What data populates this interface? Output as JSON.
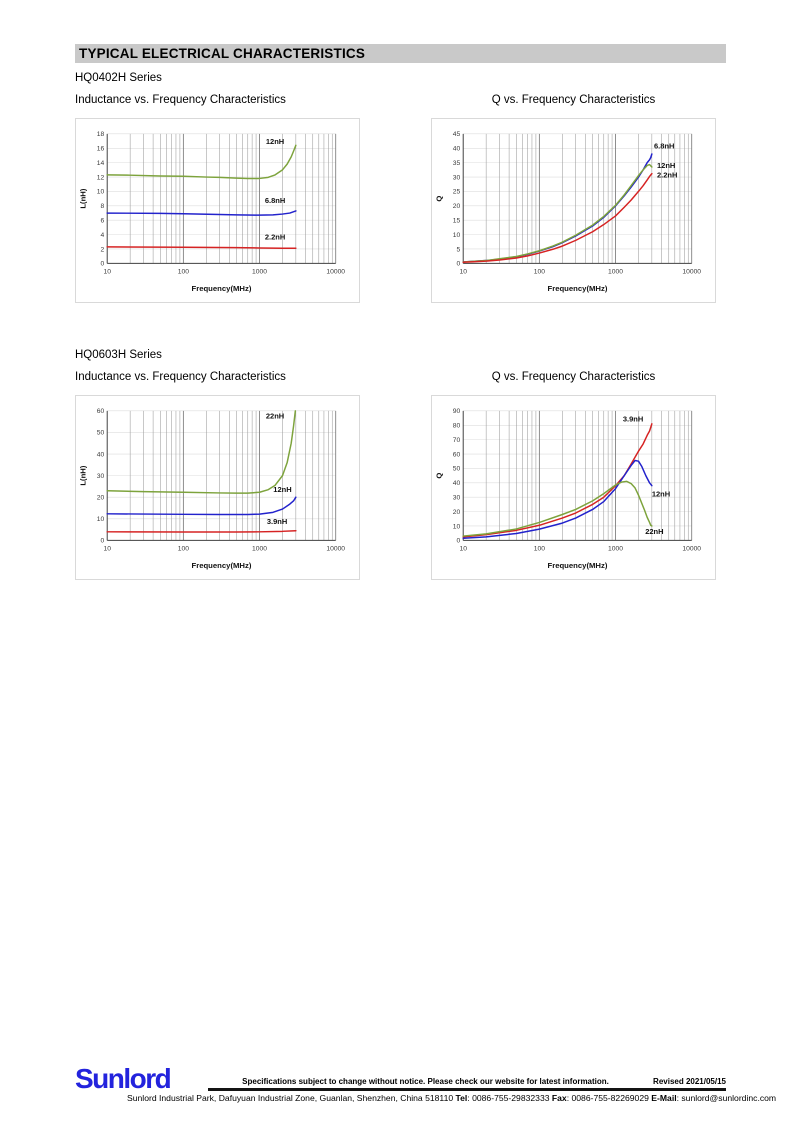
{
  "page": {
    "header_title": "TYPICAL ELECTRICAL CHARACTERISTICS",
    "sections": [
      {
        "series_name": "HQ0402H Series",
        "left_chart_title": "Inductance vs. Frequency Characteristics",
        "right_chart_title": "Q vs. Frequency Characteristics"
      },
      {
        "series_name": "HQ0603H Series",
        "left_chart_title": "Inductance vs. Frequency Characteristics",
        "right_chart_title": "Q vs. Frequency Characteristics"
      }
    ],
    "footer": {
      "logo_text": "Sunlord",
      "spec_notice": "Specifications subject to change without notice. Please check our website for latest information.",
      "revised": "Revised 2021/05/15",
      "address_prefix": "Sunlord Industrial Park, Dafuyuan Industrial Zone, Guanlan, Shenzhen, China 518110 ",
      "tel_label": "Tel",
      "tel_value": ": 0086-755-29832333 ",
      "fax_label": "Fax",
      "fax_value": ": 0086-755-82269029 ",
      "email_label": "E-Mail",
      "email_value": ": sunlord@sunlordinc.com"
    }
  },
  "colors": {
    "green": "#7da33c",
    "blue": "#2222cc",
    "red": "#d62323",
    "logo_blue": "#2323dd",
    "header_bg": "#c9c9c9",
    "grid_minor": "#9a9a9a",
    "grid_major": "#7a7a7a",
    "grid_h": "#dedede",
    "axis": "#404040"
  },
  "chart_data": [
    {
      "type": "line",
      "section": "HQ0402H Series",
      "title": "Inductance vs. Frequency Characteristics",
      "xlabel": "Frequency(MHz)",
      "ylabel": "L(nH)",
      "xscale": "log",
      "xlim": [
        10,
        10000
      ],
      "xticks": [
        10,
        100,
        1000,
        10000
      ],
      "ylim": [
        0,
        18
      ],
      "ystep": 2,
      "grid": true,
      "series": [
        {
          "name": "12nH",
          "color": "green",
          "points": [
            [
              10,
              12.3
            ],
            [
              20,
              12.25
            ],
            [
              50,
              12.15
            ],
            [
              100,
              12.1
            ],
            [
              200,
              12.0
            ],
            [
              300,
              11.95
            ],
            [
              500,
              11.85
            ],
            [
              700,
              11.8
            ],
            [
              1000,
              11.8
            ],
            [
              1300,
              11.95
            ],
            [
              1600,
              12.3
            ],
            [
              2000,
              13.0
            ],
            [
              2300,
              13.8
            ],
            [
              2600,
              14.8
            ],
            [
              2800,
              15.6
            ],
            [
              3000,
              16.4
            ]
          ]
        },
        {
          "name": "6.8nH",
          "color": "blue",
          "points": [
            [
              10,
              7.0
            ],
            [
              50,
              6.95
            ],
            [
              100,
              6.9
            ],
            [
              300,
              6.8
            ],
            [
              500,
              6.75
            ],
            [
              1000,
              6.7
            ],
            [
              1500,
              6.75
            ],
            [
              2000,
              6.85
            ],
            [
              2500,
              7.0
            ],
            [
              3000,
              7.3
            ]
          ]
        },
        {
          "name": "2.2nH",
          "color": "red",
          "points": [
            [
              10,
              2.3
            ],
            [
              100,
              2.25
            ],
            [
              500,
              2.2
            ],
            [
              1000,
              2.15
            ],
            [
              2000,
              2.1
            ],
            [
              3000,
              2.1
            ]
          ]
        }
      ],
      "labels": [
        {
          "text": "12nH",
          "f": 1600,
          "v": 16.6,
          "anchor": "middle"
        },
        {
          "text": "6.8nH",
          "f": 1600,
          "v": 8.4,
          "anchor": "middle"
        },
        {
          "text": "2.2nH",
          "f": 1600,
          "v": 3.3,
          "anchor": "middle"
        }
      ]
    },
    {
      "type": "line",
      "section": "HQ0402H Series",
      "title": "Q vs. Frequency Characteristics",
      "xlabel": "Frequency(MHz)",
      "ylabel": "Q",
      "xscale": "log",
      "xlim": [
        10,
        10000
      ],
      "xticks": [
        10,
        100,
        1000,
        10000
      ],
      "ylim": [
        0,
        45
      ],
      "ystep": 5,
      "grid": true,
      "series": [
        {
          "name": "6.8nH",
          "color": "blue",
          "points": [
            [
              10,
              0.5
            ],
            [
              20,
              1.0
            ],
            [
              30,
              1.5
            ],
            [
              50,
              2.3
            ],
            [
              70,
              3.2
            ],
            [
              100,
              4.3
            ],
            [
              150,
              5.8
            ],
            [
              200,
              7.2
            ],
            [
              300,
              9.5
            ],
            [
              500,
              13.0
            ],
            [
              700,
              16.0
            ],
            [
              1000,
              20.0
            ],
            [
              1300,
              23.5
            ],
            [
              1600,
              26.5
            ],
            [
              2000,
              30.0
            ],
            [
              2300,
              32.5
            ],
            [
              2600,
              35.0
            ],
            [
              2800,
              36.0
            ],
            [
              2900,
              36.8
            ],
            [
              3000,
              38.0
            ]
          ]
        },
        {
          "name": "12nH",
          "color": "green",
          "points": [
            [
              10,
              0.5
            ],
            [
              20,
              1.0
            ],
            [
              30,
              1.6
            ],
            [
              50,
              2.4
            ],
            [
              70,
              3.3
            ],
            [
              100,
              4.4
            ],
            [
              150,
              6.0
            ],
            [
              200,
              7.4
            ],
            [
              300,
              9.8
            ],
            [
              500,
              13.3
            ],
            [
              700,
              16.3
            ],
            [
              1000,
              20.2
            ],
            [
              1300,
              23.8
            ],
            [
              1600,
              27.0
            ],
            [
              2000,
              30.5
            ],
            [
              2300,
              32.5
            ],
            [
              2600,
              34.0
            ],
            [
              2800,
              34.3
            ],
            [
              3000,
              33.5
            ]
          ]
        },
        {
          "name": "2.2nH",
          "color": "red",
          "points": [
            [
              10,
              0.4
            ],
            [
              20,
              0.8
            ],
            [
              30,
              1.2
            ],
            [
              50,
              1.9
            ],
            [
              70,
              2.6
            ],
            [
              100,
              3.6
            ],
            [
              150,
              4.9
            ],
            [
              200,
              6.0
            ],
            [
              300,
              8.0
            ],
            [
              500,
              11.0
            ],
            [
              700,
              13.5
            ],
            [
              1000,
              16.5
            ],
            [
              1300,
              19.5
            ],
            [
              1600,
              22.0
            ],
            [
              2000,
              25.0
            ],
            [
              2300,
              27.0
            ],
            [
              2600,
              29.0
            ],
            [
              2800,
              30.2
            ],
            [
              3000,
              31.2
            ]
          ]
        }
      ],
      "labels": [
        {
          "text": "6.8nH",
          "f": 3200,
          "v": 40.0,
          "anchor": "start"
        },
        {
          "text": "12nH",
          "f": 3500,
          "v": 33.2,
          "anchor": "start"
        },
        {
          "text": "2.2nH",
          "f": 3500,
          "v": 29.8,
          "anchor": "start"
        }
      ]
    },
    {
      "type": "line",
      "section": "HQ0603H Series",
      "title": "Inductance vs. Frequency Characteristics",
      "xlabel": "Frequency(MHz)",
      "ylabel": "L(nH)",
      "xscale": "log",
      "xlim": [
        10,
        10000
      ],
      "xticks": [
        10,
        100,
        1000,
        10000
      ],
      "ylim": [
        0,
        60
      ],
      "ystep": 10,
      "grid": true,
      "series": [
        {
          "name": "22nH",
          "color": "green",
          "points": [
            [
              10,
              23.0
            ],
            [
              30,
              22.6
            ],
            [
              100,
              22.3
            ],
            [
              300,
              22.0
            ],
            [
              500,
              21.9
            ],
            [
              700,
              21.9
            ],
            [
              1000,
              22.3
            ],
            [
              1300,
              23.5
            ],
            [
              1600,
              25.5
            ],
            [
              2000,
              30.0
            ],
            [
              2300,
              36.0
            ],
            [
              2600,
              45.0
            ],
            [
              2800,
              53.0
            ],
            [
              2950,
              60.0
            ]
          ]
        },
        {
          "name": "12nH",
          "color": "blue",
          "points": [
            [
              10,
              12.3
            ],
            [
              100,
              12.1
            ],
            [
              300,
              12.0
            ],
            [
              700,
              12.0
            ],
            [
              1000,
              12.2
            ],
            [
              1500,
              13.0
            ],
            [
              2000,
              14.5
            ],
            [
              2500,
              16.8
            ],
            [
              2800,
              18.3
            ],
            [
              3000,
              20.0
            ]
          ]
        },
        {
          "name": "3.9nH",
          "color": "red",
          "points": [
            [
              10,
              4.0
            ],
            [
              100,
              3.9
            ],
            [
              500,
              3.9
            ],
            [
              1000,
              4.0
            ],
            [
              2000,
              4.2
            ],
            [
              3000,
              4.5
            ]
          ]
        }
      ],
      "labels": [
        {
          "text": "22nH",
          "f": 1600,
          "v": 56.5,
          "anchor": "middle"
        },
        {
          "text": "12nH",
          "f": 2000,
          "v": 22.5,
          "anchor": "middle"
        },
        {
          "text": "3.9nH",
          "f": 1700,
          "v": 7.5,
          "anchor": "middle"
        }
      ]
    },
    {
      "type": "line",
      "section": "HQ0603H Series",
      "title": "Q vs. Frequency Characteristics",
      "xlabel": "Frequency(MHz)",
      "ylabel": "Q",
      "xscale": "log",
      "xlim": [
        10,
        10000
      ],
      "xticks": [
        10,
        100,
        1000,
        10000
      ],
      "ylim": [
        0,
        90
      ],
      "ystep": 10,
      "grid": true,
      "series": [
        {
          "name": "3.9nH",
          "color": "red",
          "points": [
            [
              10,
              2.5
            ],
            [
              20,
              4.0
            ],
            [
              50,
              7.0
            ],
            [
              100,
              10.5
            ],
            [
              200,
              15.5
            ],
            [
              300,
              19.0
            ],
            [
              500,
              25.0
            ],
            [
              700,
              30.0
            ],
            [
              1000,
              38.0
            ],
            [
              1300,
              45.0
            ],
            [
              1600,
              53.0
            ],
            [
              2000,
              62.0
            ],
            [
              2300,
              67.0
            ],
            [
              2600,
              73.0
            ],
            [
              2800,
              76.0
            ],
            [
              3000,
              81.0
            ]
          ]
        },
        {
          "name": "12nH",
          "color": "blue",
          "points": [
            [
              10,
              1.5
            ],
            [
              20,
              2.5
            ],
            [
              50,
              4.8
            ],
            [
              100,
              7.8
            ],
            [
              200,
              12.0
            ],
            [
              300,
              15.5
            ],
            [
              500,
              21.5
            ],
            [
              700,
              27.0
            ],
            [
              1000,
              36.0
            ],
            [
              1300,
              45.0
            ],
            [
              1600,
              52.0
            ],
            [
              1800,
              55.5
            ],
            [
              2000,
              55.0
            ],
            [
              2200,
              51.5
            ],
            [
              2500,
              45.0
            ],
            [
              2800,
              40.0
            ],
            [
              3000,
              38.0
            ]
          ]
        },
        {
          "name": "22nH",
          "color": "green",
          "points": [
            [
              10,
              3.0
            ],
            [
              20,
              4.5
            ],
            [
              50,
              8.0
            ],
            [
              100,
              12.5
            ],
            [
              200,
              18.0
            ],
            [
              300,
              21.5
            ],
            [
              500,
              27.5
            ],
            [
              700,
              32.5
            ],
            [
              1000,
              38.5
            ],
            [
              1200,
              40.5
            ],
            [
              1400,
              41.0
            ],
            [
              1600,
              39.5
            ],
            [
              1800,
              36.5
            ],
            [
              2000,
              31.5
            ],
            [
              2200,
              26.0
            ],
            [
              2400,
              21.0
            ],
            [
              2600,
              16.0
            ],
            [
              2800,
              12.5
            ],
            [
              2900,
              10.5
            ],
            [
              3000,
              10.0
            ]
          ]
        }
      ],
      "labels": [
        {
          "text": "3.9nH",
          "f": 1700,
          "v": 82.5,
          "anchor": "middle"
        },
        {
          "text": "12nH",
          "f": 3000,
          "v": 30.5,
          "anchor": "start"
        },
        {
          "text": "22nH",
          "f": 2450,
          "v": 4.5,
          "anchor": "start"
        }
      ]
    }
  ]
}
